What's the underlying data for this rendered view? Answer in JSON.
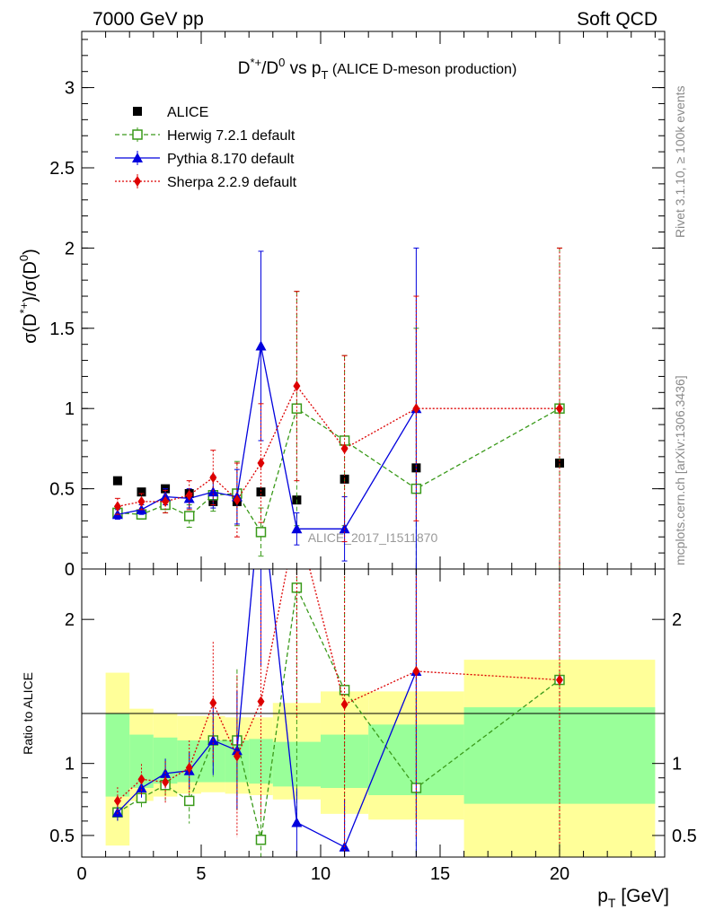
{
  "header": {
    "left": "7000 GeV pp",
    "right": "Soft QCD"
  },
  "side": {
    "rivet": "Rivet 3.1.10, ≥ 100k events",
    "mcplots": "mcplots.cern.ch [arXiv:1306.3436]"
  },
  "chart_data": {
    "type": "scatter",
    "title": {
      "main": "D*+/D0 vs pT",
      "subtitle": "(ALICE D-meson production)"
    },
    "watermark": "ALICE_2017_I1511870",
    "x": [
      1.5,
      2.5,
      3.5,
      4.5,
      5.5,
      6.5,
      7.5,
      9,
      11,
      14,
      20
    ],
    "xlabel": "p_T [GeV]",
    "xlim": [
      0,
      24.4
    ],
    "x_ticks": [
      "0",
      "5",
      "10",
      "15",
      "20"
    ],
    "top_panel": {
      "ylabel": "σ(D*+)/σ(D0)",
      "ylim": [
        0,
        3.35
      ],
      "y_ticks": [
        "0",
        "0.5",
        "1",
        "1.5",
        "2",
        "2.5",
        "3"
      ],
      "legend_position": "top-left",
      "series": [
        {
          "name": "ALICE",
          "color": "#000000",
          "marker": "filled-square",
          "y": [
            0.55,
            0.48,
            0.5,
            0.47,
            0.42,
            0.42,
            0.48,
            0.43,
            0.56,
            0.63,
            0.66
          ]
        },
        {
          "name": "Herwig 7.2.1 default",
          "color": "#3a9a1a",
          "marker": "open-square",
          "line": "dashed",
          "y": [
            0.35,
            0.34,
            0.4,
            0.33,
            0.46,
            0.47,
            0.23,
            1.0,
            0.8,
            0.5,
            1.0
          ],
          "err": [
            0.03,
            0.03,
            0.05,
            0.07,
            0.1,
            0.2,
            0.15,
            0.73,
            0.53,
            1.0,
            1.0
          ]
        },
        {
          "name": "Pythia 8.170 default",
          "color": "#0000dd",
          "marker": "filled-triangle",
          "line": "solid",
          "y": [
            0.34,
            0.37,
            0.45,
            0.44,
            0.48,
            0.45,
            1.39,
            0.25,
            0.25,
            1.0,
            null
          ],
          "err": [
            0.03,
            0.03,
            0.05,
            0.06,
            0.1,
            0.17,
            0.59,
            0.1,
            0.2,
            1.0,
            null
          ]
        },
        {
          "name": "Sherpa 2.2.9 default",
          "color": "#dd0000",
          "marker": "filled-diamond",
          "line": "dotted",
          "y": [
            0.39,
            0.42,
            0.42,
            0.46,
            0.57,
            0.43,
            0.66,
            1.14,
            0.75,
            1.0,
            1.0
          ],
          "err": [
            0.05,
            0.05,
            0.07,
            0.09,
            0.17,
            0.23,
            0.37,
            0.59,
            0.58,
            0.7,
            1.0
          ]
        }
      ]
    },
    "ratio_panel": {
      "ylabel": "Ratio to ALICE",
      "ylim": [
        0.35,
        2.35
      ],
      "y_ticks": [
        "0.5",
        "1",
        "2"
      ],
      "bin_edges": [
        1,
        2,
        3,
        4,
        5,
        6,
        7,
        8,
        10,
        12,
        16,
        24
      ],
      "band_inner": [
        [
          0.77,
          1.35
        ],
        [
          0.83,
          1.2
        ],
        [
          0.86,
          1.18
        ],
        [
          0.87,
          1.16
        ],
        [
          0.87,
          1.16
        ],
        [
          0.87,
          1.16
        ],
        [
          0.86,
          1.17
        ],
        [
          0.84,
          1.15
        ],
        [
          0.83,
          1.2
        ],
        [
          0.78,
          1.27
        ],
        [
          0.72,
          1.39
        ]
      ],
      "band_outer": [
        [
          0.43,
          1.63
        ],
        [
          0.74,
          1.38
        ],
        [
          0.77,
          1.35
        ],
        [
          0.79,
          1.33
        ],
        [
          0.8,
          1.33
        ],
        [
          0.79,
          1.32
        ],
        [
          0.78,
          1.32
        ],
        [
          0.75,
          1.42
        ],
        [
          0.65,
          1.5
        ],
        [
          0.61,
          1.5
        ],
        [
          0.35,
          1.72
        ]
      ],
      "series": [
        {
          "name": "Herwig 7.2.1 default",
          "y": [
            0.66,
            0.76,
            0.85,
            0.74,
            1.16,
            1.16,
            0.47,
            2.22,
            1.51,
            0.83,
            1.58
          ]
        },
        {
          "name": "Pythia 8.170 default",
          "y": [
            0.66,
            0.83,
            0.93,
            0.95,
            1.16,
            1.09,
            2.9,
            0.59,
            0.42,
            1.64,
            null
          ]
        },
        {
          "name": "Sherpa 2.2.9 default",
          "y": [
            0.74,
            0.89,
            0.87,
            0.97,
            1.42,
            1.05,
            1.43,
            2.7,
            1.41,
            1.64,
            1.58
          ]
        }
      ]
    }
  }
}
